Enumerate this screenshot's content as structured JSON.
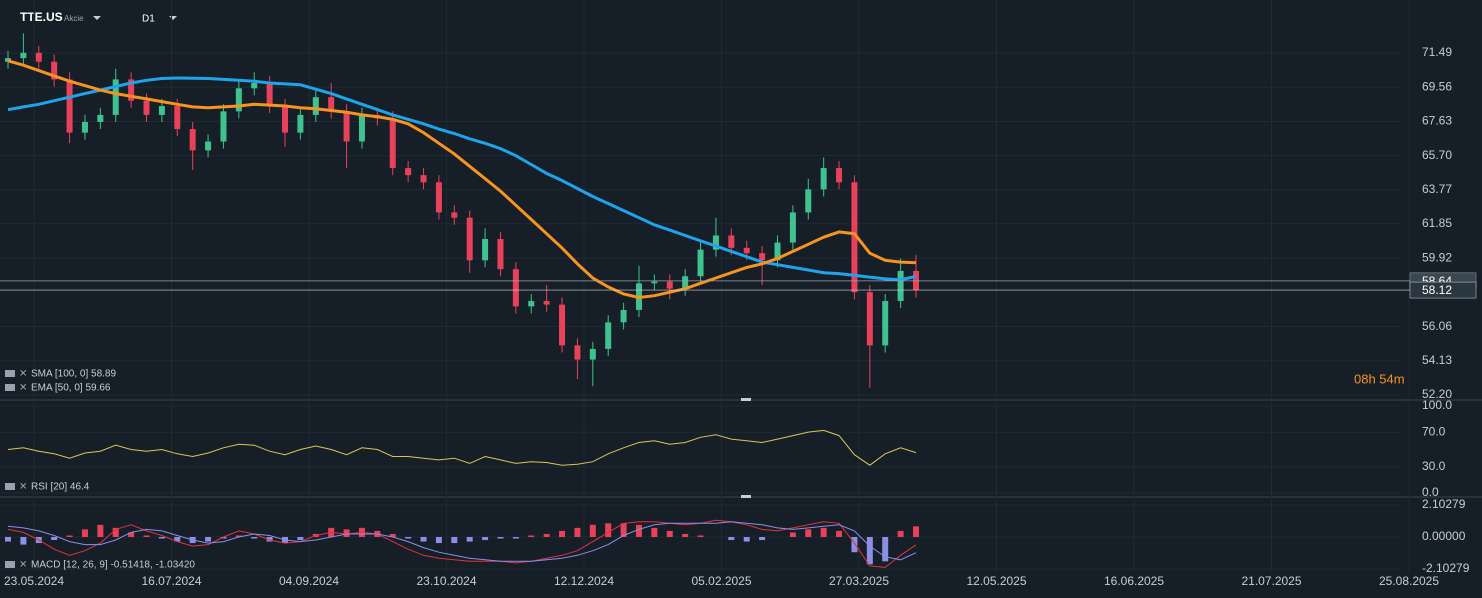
{
  "header": {
    "symbol": "TTE.US",
    "asset_type": "Akcie",
    "timeframe": "D1"
  },
  "chart_data": [
    {
      "type": "candlestick",
      "up_color": "#3ec28f",
      "down_color": "#e8415a",
      "open": [
        71.0,
        71.2,
        71.5,
        71.0,
        70.0,
        67.0,
        67.6,
        68.0,
        70.0,
        68.8,
        68.0,
        68.5,
        67.2,
        66.0,
        66.5,
        68.2,
        69.5,
        69.8,
        68.5,
        67.0,
        68.0,
        69.0,
        68.2,
        66.5,
        68.0,
        67.8,
        65.0,
        64.6,
        64.2,
        62.5,
        62.2,
        59.8,
        61.0,
        59.3,
        57.2,
        57.5,
        57.3,
        55.0,
        54.2,
        54.8,
        56.3,
        57.0,
        58.5,
        58.6,
        58.2,
        58.9,
        60.4,
        61.2,
        60.5,
        60.2,
        59.8,
        60.8,
        62.5,
        63.8,
        65.0,
        64.2,
        58.0,
        55.0,
        57.5,
        59.2
      ],
      "high": [
        71.6,
        72.6,
        71.9,
        71.4,
        70.4,
        68.0,
        68.4,
        70.6,
        70.4,
        69.2,
        68.9,
        68.9,
        67.6,
        66.9,
        68.6,
        69.9,
        70.4,
        70.2,
        68.9,
        68.4,
        69.4,
        69.8,
        68.6,
        68.4,
        68.4,
        68.2,
        65.4,
        65.0,
        64.6,
        62.9,
        62.6,
        61.6,
        61.4,
        59.7,
        57.9,
        58.4,
        57.7,
        55.4,
        55.2,
        56.7,
        57.4,
        59.5,
        59.0,
        59.0,
        59.3,
        60.8,
        62.2,
        61.6,
        60.9,
        60.6,
        61.2,
        62.9,
        64.4,
        65.6,
        65.4,
        64.6,
        58.4,
        57.9,
        59.9,
        60.1
      ],
      "low": [
        70.6,
        70.8,
        70.6,
        69.6,
        66.4,
        66.6,
        67.2,
        67.6,
        68.4,
        67.6,
        67.6,
        66.8,
        64.9,
        65.6,
        66.1,
        67.8,
        69.1,
        68.1,
        66.2,
        66.6,
        67.6,
        67.8,
        65.0,
        66.1,
        67.4,
        64.6,
        64.2,
        63.8,
        62.1,
        61.8,
        59.1,
        59.4,
        58.9,
        56.8,
        56.8,
        56.9,
        54.6,
        53.1,
        52.7,
        54.4,
        55.9,
        56.6,
        58.1,
        57.6,
        57.8,
        58.5,
        60.0,
        60.1,
        59.8,
        58.4,
        59.4,
        60.4,
        62.1,
        63.4,
        63.8,
        57.6,
        52.6,
        54.6,
        57.1,
        57.7
      ],
      "close": [
        71.2,
        71.5,
        71.0,
        70.0,
        67.0,
        67.6,
        68.0,
        70.0,
        68.8,
        68.0,
        68.5,
        67.2,
        66.0,
        66.5,
        68.2,
        69.5,
        69.8,
        68.5,
        67.0,
        68.0,
        69.0,
        68.2,
        66.5,
        68.0,
        67.8,
        65.0,
        64.6,
        64.2,
        62.5,
        62.2,
        59.8,
        61.0,
        59.3,
        57.2,
        57.5,
        57.3,
        55.0,
        54.2,
        54.8,
        56.3,
        57.0,
        58.5,
        58.6,
        58.2,
        58.9,
        60.4,
        61.2,
        60.5,
        60.2,
        59.8,
        60.8,
        62.5,
        63.8,
        65.0,
        64.2,
        58.0,
        55.0,
        57.5,
        59.2,
        58.12
      ],
      "series": [
        {
          "color": "#1ea4ec",
          "values": [
            68.3,
            68.45,
            68.6,
            68.8,
            69.0,
            69.2,
            69.4,
            69.6,
            69.8,
            69.95,
            70.05,
            70.08,
            70.07,
            70.05,
            70.0,
            69.95,
            69.9,
            69.8,
            69.75,
            69.7,
            69.45,
            69.2,
            68.9,
            68.6,
            68.3,
            68.0,
            67.75,
            67.5,
            67.2,
            66.95,
            66.65,
            66.4,
            66.1,
            65.7,
            65.2,
            64.7,
            64.3,
            63.85,
            63.4,
            63.0,
            62.6,
            62.2,
            61.8,
            61.5,
            61.2,
            60.9,
            60.6,
            60.3,
            60.0,
            59.7,
            59.55,
            59.4,
            59.25,
            59.1,
            59.05,
            58.95,
            58.85,
            58.75,
            58.7,
            58.89
          ]
        },
        {
          "color": "#f7931e",
          "values": [
            71.05,
            70.8,
            70.5,
            70.2,
            69.9,
            69.65,
            69.4,
            69.2,
            69.05,
            68.9,
            68.75,
            68.6,
            68.45,
            68.4,
            68.45,
            68.5,
            68.6,
            68.55,
            68.5,
            68.4,
            68.35,
            68.25,
            68.15,
            68.0,
            67.9,
            67.75,
            67.5,
            67.0,
            66.4,
            65.8,
            65.1,
            64.4,
            63.7,
            62.9,
            62.1,
            61.3,
            60.5,
            59.6,
            58.8,
            58.3,
            57.9,
            57.7,
            57.8,
            58.0,
            58.2,
            58.5,
            58.8,
            59.1,
            59.4,
            59.6,
            59.9,
            60.3,
            60.7,
            61.1,
            61.4,
            61.3,
            60.2,
            59.8,
            59.7,
            59.66
          ]
        }
      ],
      "legend": [
        "SMA [100, 0] 58.89",
        "EMA [50, 0] 59.66"
      ],
      "ylim": [
        51.92,
        74.48
      ],
      "yticks": [
        71.49,
        69.56,
        67.63,
        {
          "value": 65.7,
          "label": "65.70"
        },
        63.77,
        61.85,
        59.92,
        56.06,
        54.13,
        {
          "value": 52.2,
          "label": "52.20"
        }
      ],
      "price_lines": [
        {
          "value": 58.64,
          "color": "#9aa3ad"
        },
        {
          "value": 58.12,
          "color": "#d0d4d8"
        }
      ],
      "countdown": "08h 54m",
      "x_labels": [
        "23.05.2024",
        "16.07.2024",
        "04.09.2024",
        "23.10.2024",
        "12.12.2024",
        "05.02.2025",
        "27.03.2025",
        "12.05.2025",
        "16.06.2025",
        "21.07.2025",
        "25.08.2025"
      ]
    },
    {
      "type": "line",
      "color": "#d9c65a",
      "values": [
        50,
        52,
        48,
        45,
        40,
        46,
        48,
        55,
        50,
        48,
        50,
        45,
        42,
        46,
        52,
        56,
        55,
        48,
        44,
        50,
        54,
        50,
        44,
        52,
        50,
        42,
        42,
        40,
        38,
        40,
        34,
        42,
        38,
        34,
        36,
        35,
        32,
        33,
        36,
        45,
        52,
        58,
        60,
        56,
        58,
        64,
        67,
        62,
        60,
        58,
        62,
        66,
        70,
        72,
        66,
        44,
        32,
        45,
        52,
        46.4
      ],
      "legend": [
        "RSI [20] 46.4"
      ],
      "ylim": [
        -4.6,
        104.6
      ],
      "yticks": [
        {
          "value": 100,
          "label": "100.0"
        },
        {
          "value": 70,
          "label": "70.0"
        },
        {
          "value": 30,
          "label": "30.0"
        },
        {
          "value": 0,
          "label": "0.0"
        }
      ]
    },
    {
      "type": "macd",
      "up_color": "#e8415a",
      "down_color": "#8c8fe6",
      "histogram": [
        -0.3,
        -0.5,
        -0.4,
        -0.2,
        0.1,
        0.5,
        0.8,
        0.6,
        0.3,
        0.1,
        -0.1,
        -0.3,
        -0.4,
        -0.3,
        -0.1,
        0.1,
        -0.1,
        -0.3,
        -0.4,
        -0.2,
        0.2,
        0.6,
        0.5,
        0.6,
        0.4,
        0.2,
        -0.1,
        -0.3,
        -0.4,
        -0.4,
        -0.3,
        -0.2,
        -0.1,
        -0.1,
        0.1,
        0.2,
        0.4,
        0.6,
        0.8,
        0.9,
        0.9,
        0.8,
        0.6,
        0.4,
        0.2,
        0.1,
        0.0,
        -0.2,
        -0.3,
        -0.2,
        0.0,
        0.3,
        0.5,
        0.6,
        0.4,
        -1.0,
        -1.8,
        -1.6,
        0.4,
        0.7
      ],
      "series": [
        {
          "color": "#e0333f",
          "values": [
            0.5,
            0.3,
            -0.2,
            -0.8,
            -1.2,
            -0.9,
            -0.4,
            0.5,
            0.8,
            0.4,
            0.1,
            -0.3,
            -0.6,
            -0.5,
            0.0,
            0.4,
            0.2,
            -0.2,
            -0.4,
            -0.3,
            0.1,
            0.3,
            0.2,
            0.3,
            0.2,
            -0.3,
            -0.8,
            -1.2,
            -1.4,
            -1.5,
            -1.6,
            -1.6,
            -1.6,
            -1.7,
            -1.6,
            -1.4,
            -1.2,
            -0.9,
            -0.3,
            0.3,
            0.9,
            1.0,
            1.0,
            0.9,
            0.8,
            0.9,
            1.1,
            1.0,
            0.8,
            0.5,
            0.4,
            0.6,
            0.8,
            1.0,
            0.9,
            -0.4,
            -1.9,
            -2.0,
            -1.2,
            -0.51418
          ]
        },
        {
          "color": "#8a8ee8",
          "values": [
            0.7,
            0.6,
            0.4,
            0.1,
            -0.3,
            -0.5,
            -0.5,
            -0.2,
            0.3,
            0.5,
            0.4,
            0.1,
            -0.2,
            -0.4,
            -0.3,
            0.0,
            0.2,
            0.1,
            -0.2,
            -0.3,
            -0.2,
            0.0,
            0.2,
            0.2,
            0.2,
            0.0,
            -0.3,
            -0.7,
            -1.0,
            -1.2,
            -1.4,
            -1.5,
            -1.6,
            -1.6,
            -1.6,
            -1.5,
            -1.4,
            -1.2,
            -0.9,
            -0.5,
            0.1,
            0.5,
            0.8,
            0.9,
            0.9,
            0.9,
            0.9,
            1.0,
            0.9,
            0.8,
            0.6,
            0.5,
            0.6,
            0.7,
            0.8,
            0.4,
            -0.6,
            -1.3,
            -1.5,
            -1.0342
          ]
        }
      ],
      "legend": [
        "MACD [12, 26, 9] -0.51418, -1.03420"
      ],
      "ylim": [
        -2.3,
        2.431
      ],
      "yticks": [
        2.10279,
        {
          "value": 0,
          "label": "0.00000"
        },
        -2.10279
      ]
    }
  ]
}
